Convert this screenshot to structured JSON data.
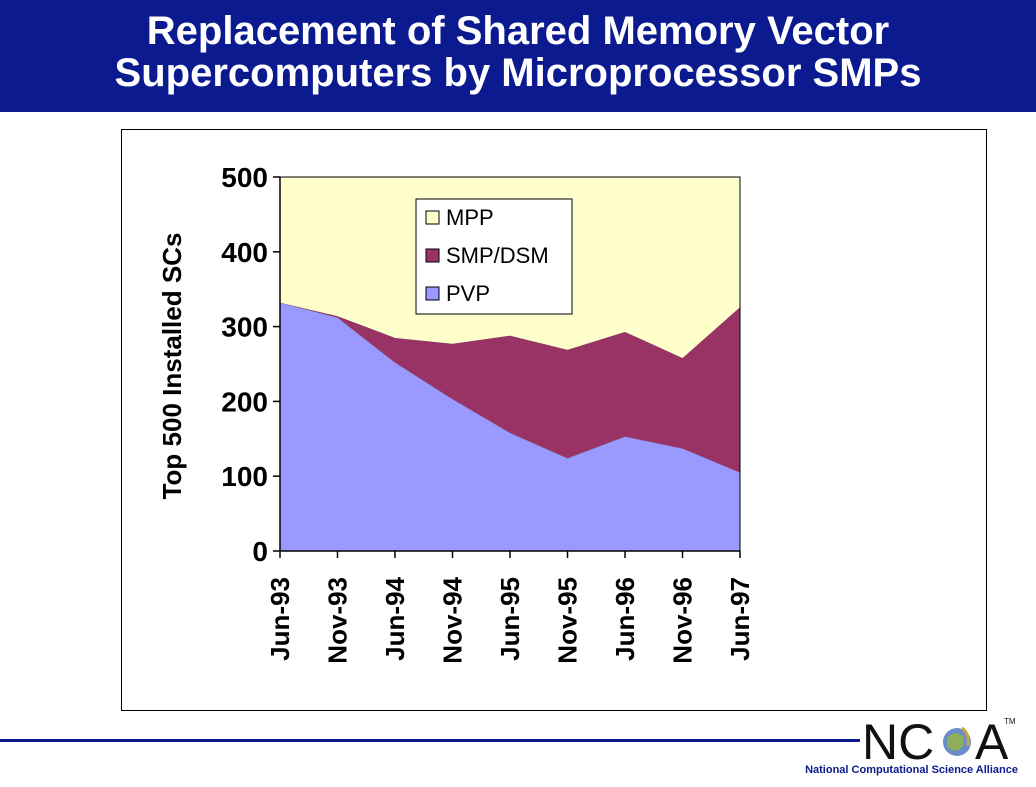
{
  "title": {
    "line1": "Replacement of Shared Memory Vector",
    "line2": "Supercomputers by Microprocessor SMPs"
  },
  "colors": {
    "title_bg": "#0b1b8f",
    "mpp": "#ffffcc",
    "smp_dsm": "#993366",
    "pvp": "#9999ff"
  },
  "chart_data": {
    "type": "area",
    "stacked": true,
    "ylabel": "Top 500 Installed SCs",
    "xlabel": "",
    "ylim": [
      0,
      500
    ],
    "yticks": [
      0,
      100,
      200,
      300,
      400,
      500
    ],
    "categories": [
      "Jun-93",
      "Nov-93",
      "Jun-94",
      "Nov-94",
      "Jun-95",
      "Nov-95",
      "Jun-96",
      "Nov-96",
      "Jun-97"
    ],
    "series": [
      {
        "name": "PVP",
        "values": [
          332,
          312,
          252,
          203,
          158,
          124,
          153,
          137,
          105
        ]
      },
      {
        "name": "SMP/DSM",
        "values": [
          0,
          2,
          33,
          74,
          130,
          145,
          140,
          121,
          221
        ]
      },
      {
        "name": "MPP",
        "values": [
          168,
          186,
          215,
          223,
          212,
          231,
          207,
          242,
          174
        ]
      }
    ],
    "legend": {
      "position": "top-center",
      "entries": [
        "MPP",
        "SMP/DSM",
        "PVP"
      ]
    },
    "grid": false
  },
  "footer": {
    "org": "National Computational Science Alliance",
    "logo_text": "NCSA",
    "tm": "TM"
  }
}
